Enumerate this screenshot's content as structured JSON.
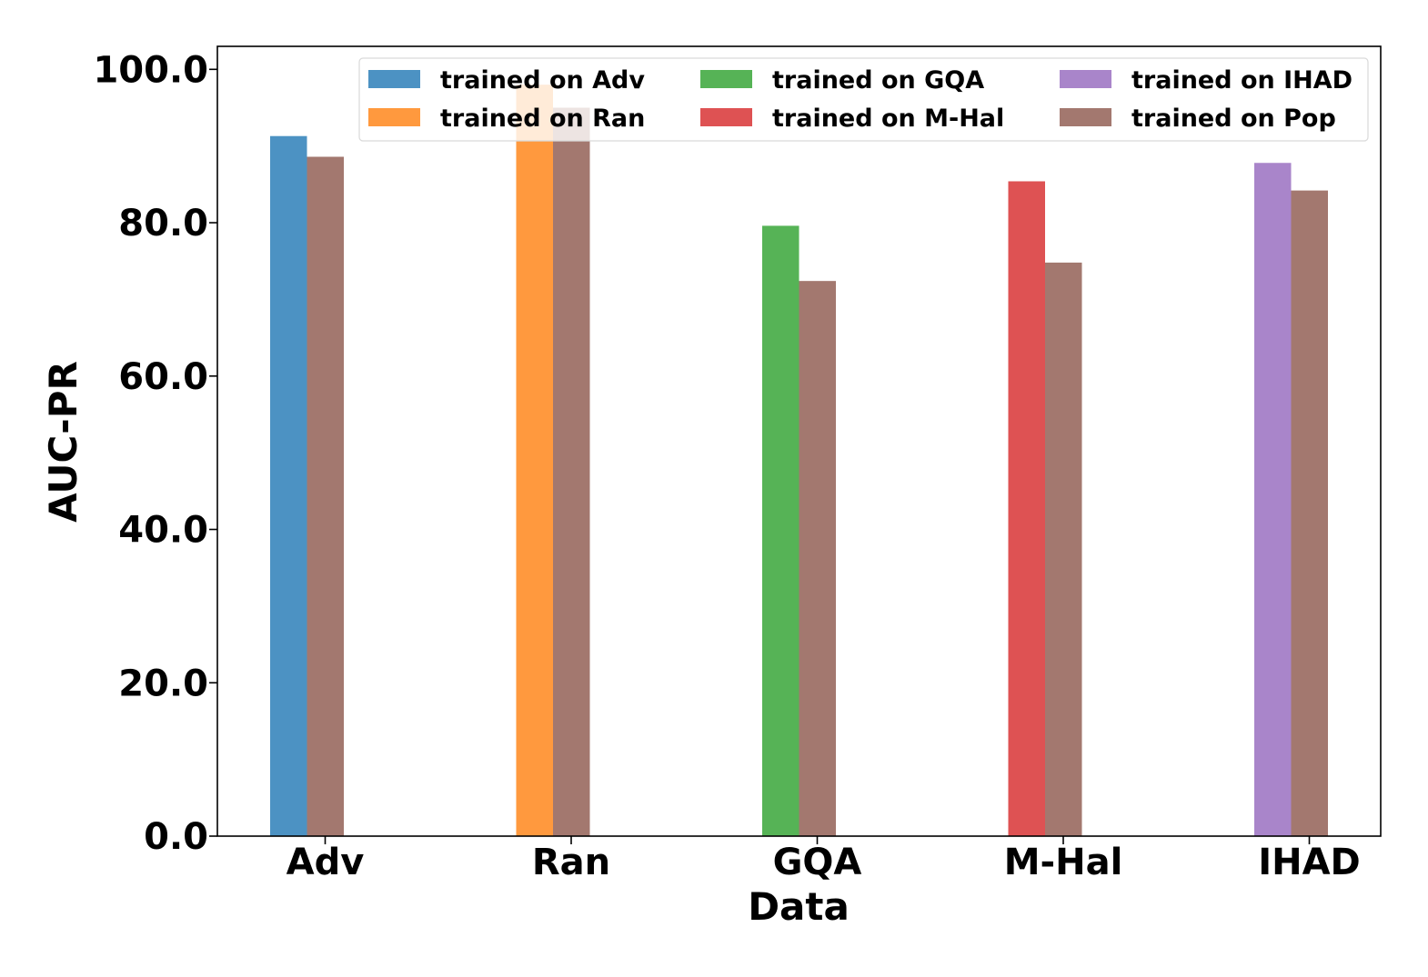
{
  "chart_data": {
    "type": "bar",
    "title": "",
    "xlabel": "Data",
    "ylabel": "AUC-PR",
    "ylim": [
      0,
      103
    ],
    "yticks": [
      0,
      20,
      40,
      60,
      80,
      100
    ],
    "ytick_labels": [
      "0.0",
      "20.0",
      "40.0",
      "60.0",
      "80.0",
      "100.0"
    ],
    "categories": [
      "Adv",
      "Ran",
      "GQA",
      "M-Hal",
      "IHAD"
    ],
    "grid": false,
    "legend_position": "top",
    "legend_columns": 3,
    "series": [
      {
        "name": "trained on Adv",
        "color": "#1f77b4",
        "values": [
          91.3,
          null,
          null,
          null,
          null
        ]
      },
      {
        "name": "trained on Ran",
        "color": "#ff7f0e",
        "values": [
          null,
          98.0,
          null,
          null,
          null
        ]
      },
      {
        "name": "trained on GQA",
        "color": "#2ca02c",
        "values": [
          null,
          null,
          79.6,
          null,
          null
        ]
      },
      {
        "name": "trained on M-Hal",
        "color": "#d62728",
        "values": [
          null,
          null,
          null,
          85.4,
          null
        ]
      },
      {
        "name": "trained on IHAD",
        "color": "#9467bd",
        "values": [
          null,
          null,
          null,
          null,
          87.8
        ]
      },
      {
        "name": "trained on Pop",
        "color": "#8c564b",
        "values": [
          88.6,
          95.0,
          72.4,
          74.8,
          84.2
        ]
      }
    ]
  }
}
